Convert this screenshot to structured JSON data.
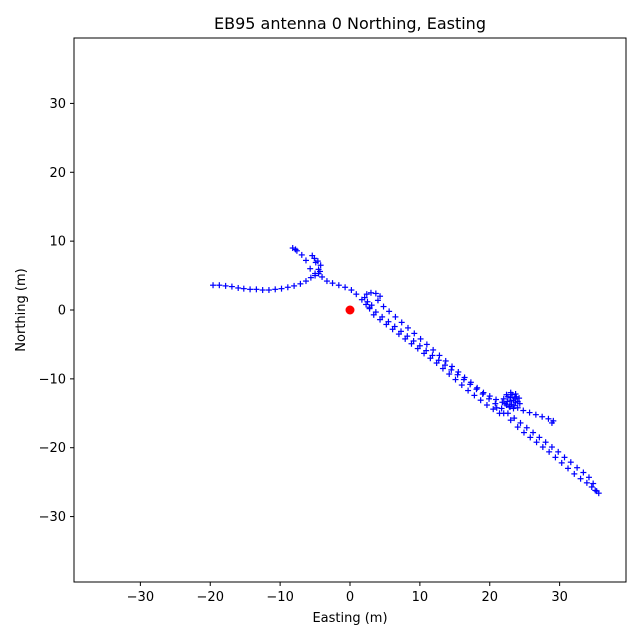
{
  "chart_data": {
    "type": "scatter",
    "title": "EB95 antenna 0 Northing, Easting",
    "xlabel": "Easting (m)",
    "ylabel": "Northing (m)",
    "xlim": [
      -39.5,
      39.5
    ],
    "ylim": [
      -39.5,
      39.5
    ],
    "xticks": [
      -30,
      -20,
      -10,
      0,
      10,
      20,
      30
    ],
    "yticks": [
      -30,
      -20,
      -10,
      0,
      10,
      20,
      30
    ],
    "tick_labels_x": [
      "−30",
      "−20",
      "−10",
      "0",
      "10",
      "20",
      "30"
    ],
    "tick_labels_y": [
      "−30",
      "−20",
      "−10",
      "0",
      "10",
      "20",
      "30"
    ],
    "grid": false,
    "legend": "none",
    "colors": {
      "track": "#0000ff",
      "origin": "#ff0000"
    },
    "series": [
      {
        "marker": "plus",
        "color": "#0000ff",
        "points": [
          [
            -19.6,
            3.6
          ],
          [
            -18.7,
            3.6
          ],
          [
            -17.8,
            3.5
          ],
          [
            -16.9,
            3.4
          ],
          [
            -16.0,
            3.2
          ],
          [
            -15.2,
            3.1
          ],
          [
            -14.3,
            3.0
          ],
          [
            -13.4,
            3.0
          ],
          [
            -12.5,
            2.9
          ],
          [
            -11.6,
            2.9
          ],
          [
            -10.7,
            3.0
          ],
          [
            -9.8,
            3.1
          ],
          [
            -8.9,
            3.3
          ],
          [
            -8.0,
            3.5
          ],
          [
            -7.1,
            3.8
          ],
          [
            -6.3,
            4.2
          ],
          [
            -5.6,
            4.7
          ],
          [
            -5.0,
            5.3
          ],
          [
            -4.5,
            5.9
          ],
          [
            -4.2,
            6.5
          ],
          [
            -4.6,
            7.1
          ],
          [
            -5.1,
            7.5
          ],
          [
            -5.4,
            7.9
          ],
          [
            -4.9,
            6.9
          ],
          [
            -4.3,
            5.6
          ],
          [
            -5.0,
            5.0
          ],
          [
            -5.7,
            6.0
          ],
          [
            -6.3,
            7.2
          ],
          [
            -6.9,
            8.0
          ],
          [
            -7.6,
            8.6
          ],
          [
            -8.2,
            9.0
          ],
          [
            -7.8,
            8.8
          ],
          [
            -4.5,
            5.3
          ],
          [
            -4.0,
            4.8
          ],
          [
            -3.3,
            4.2
          ],
          [
            -2.5,
            3.9
          ],
          [
            -1.6,
            3.6
          ],
          [
            -0.7,
            3.3
          ],
          [
            0.2,
            2.9
          ],
          [
            0.9,
            2.3
          ],
          [
            1.7,
            1.5
          ],
          [
            2.3,
            0.8
          ],
          [
            2.8,
            0.4
          ],
          [
            3.1,
            0.7
          ],
          [
            2.5,
            1.2
          ],
          [
            2.1,
            1.8
          ],
          [
            2.4,
            2.3
          ],
          [
            3.0,
            2.5
          ],
          [
            3.7,
            2.4
          ],
          [
            4.3,
            2.0
          ],
          [
            4.0,
            1.4
          ],
          [
            4.8,
            0.5
          ],
          [
            5.6,
            -0.2
          ],
          [
            6.5,
            -1.0
          ],
          [
            7.4,
            -1.8
          ],
          [
            8.3,
            -2.6
          ],
          [
            9.2,
            -3.4
          ],
          [
            10.1,
            -4.2
          ],
          [
            11.0,
            -5.0
          ],
          [
            11.9,
            -5.8
          ],
          [
            12.8,
            -6.6
          ],
          [
            13.7,
            -7.4
          ],
          [
            14.6,
            -8.2
          ],
          [
            15.5,
            -9.0
          ],
          [
            16.4,
            -9.8
          ],
          [
            17.3,
            -10.5
          ],
          [
            18.2,
            -11.3
          ],
          [
            19.1,
            -12.0
          ],
          [
            20.0,
            -12.5
          ],
          [
            20.9,
            -13.0
          ],
          [
            21.8,
            -13.4
          ],
          [
            22.4,
            -13.8
          ],
          [
            22.9,
            -14.1
          ],
          [
            23.4,
            -14.3
          ],
          [
            24.0,
            -14.2
          ],
          [
            24.3,
            -13.6
          ],
          [
            24.2,
            -12.8
          ],
          [
            23.7,
            -12.2
          ],
          [
            23.0,
            -12.0
          ],
          [
            22.4,
            -12.3
          ],
          [
            22.0,
            -12.9
          ],
          [
            22.2,
            -13.6
          ],
          [
            22.8,
            -14.0
          ],
          [
            23.5,
            -13.9
          ],
          [
            24.0,
            -13.3
          ],
          [
            23.8,
            -12.6
          ],
          [
            23.2,
            -12.3
          ],
          [
            22.6,
            -12.6
          ],
          [
            22.5,
            -13.3
          ],
          [
            23.1,
            -13.7
          ],
          [
            23.7,
            -13.4
          ],
          [
            23.6,
            -12.8
          ],
          [
            23.0,
            -12.7
          ],
          [
            22.9,
            -13.2
          ],
          [
            23.4,
            -13.1
          ],
          [
            24.8,
            -14.6
          ],
          [
            25.7,
            -14.9
          ],
          [
            26.6,
            -15.2
          ],
          [
            27.5,
            -15.5
          ],
          [
            28.4,
            -15.8
          ],
          [
            29.1,
            -16.1
          ],
          [
            28.9,
            -16.4
          ],
          [
            21.0,
            -14.2
          ],
          [
            22.0,
            -15.0
          ],
          [
            23.0,
            -16.0
          ],
          [
            24.0,
            -17.0
          ],
          [
            24.9,
            -17.8
          ],
          [
            25.8,
            -18.5
          ],
          [
            26.7,
            -19.2
          ],
          [
            27.6,
            -19.9
          ],
          [
            28.5,
            -20.6
          ],
          [
            29.4,
            -21.4
          ],
          [
            30.3,
            -22.2
          ],
          [
            31.2,
            -23.0
          ],
          [
            32.1,
            -23.8
          ],
          [
            33.0,
            -24.5
          ],
          [
            33.9,
            -25.1
          ],
          [
            34.6,
            -25.7
          ],
          [
            35.1,
            -26.2
          ],
          [
            35.6,
            -26.6
          ],
          [
            35.3,
            -26.3
          ],
          [
            34.8,
            -25.2
          ],
          [
            34.2,
            -24.3
          ],
          [
            33.4,
            -23.6
          ],
          [
            32.5,
            -22.9
          ],
          [
            31.6,
            -22.1
          ],
          [
            30.7,
            -21.4
          ],
          [
            29.8,
            -20.6
          ],
          [
            28.9,
            -19.9
          ],
          [
            28.0,
            -19.2
          ],
          [
            27.1,
            -18.5
          ],
          [
            26.2,
            -17.8
          ],
          [
            25.3,
            -17.1
          ],
          [
            24.4,
            -16.4
          ],
          [
            23.5,
            -15.7
          ],
          [
            22.6,
            -15.0
          ],
          [
            21.7,
            -14.3
          ],
          [
            20.8,
            -13.6
          ],
          [
            19.9,
            -12.9
          ],
          [
            19.0,
            -12.2
          ],
          [
            18.1,
            -11.5
          ],
          [
            17.2,
            -10.8
          ],
          [
            16.3,
            -10.1
          ],
          [
            15.4,
            -9.4
          ],
          [
            14.5,
            -8.7
          ],
          [
            13.6,
            -8.0
          ],
          [
            12.7,
            -7.3
          ],
          [
            11.8,
            -6.6
          ],
          [
            10.9,
            -5.9
          ],
          [
            10.0,
            -5.2
          ],
          [
            9.1,
            -4.5
          ],
          [
            8.2,
            -3.8
          ],
          [
            7.3,
            -3.1
          ],
          [
            6.4,
            -2.4
          ],
          [
            5.5,
            -1.7
          ],
          [
            4.6,
            -1.0
          ],
          [
            3.7,
            -0.3
          ],
          [
            2.8,
            0.2
          ],
          [
            3.4,
            -0.7
          ],
          [
            4.3,
            -1.4
          ],
          [
            5.2,
            -2.1
          ],
          [
            6.1,
            -2.8
          ],
          [
            7.0,
            -3.5
          ],
          [
            7.9,
            -4.2
          ],
          [
            8.8,
            -4.9
          ],
          [
            9.7,
            -5.6
          ],
          [
            10.6,
            -6.3
          ],
          [
            11.5,
            -7.0
          ],
          [
            12.4,
            -7.7
          ],
          [
            13.3,
            -8.5
          ],
          [
            14.2,
            -9.3
          ],
          [
            15.1,
            -10.1
          ],
          [
            16.0,
            -10.9
          ],
          [
            16.9,
            -11.7
          ],
          [
            17.8,
            -12.4
          ],
          [
            18.7,
            -13.1
          ],
          [
            19.6,
            -13.8
          ],
          [
            20.5,
            -14.4
          ],
          [
            21.4,
            -15.0
          ]
        ]
      },
      {
        "marker": "circle",
        "color": "#ff0000",
        "points": [
          [
            0,
            0
          ]
        ]
      }
    ]
  }
}
